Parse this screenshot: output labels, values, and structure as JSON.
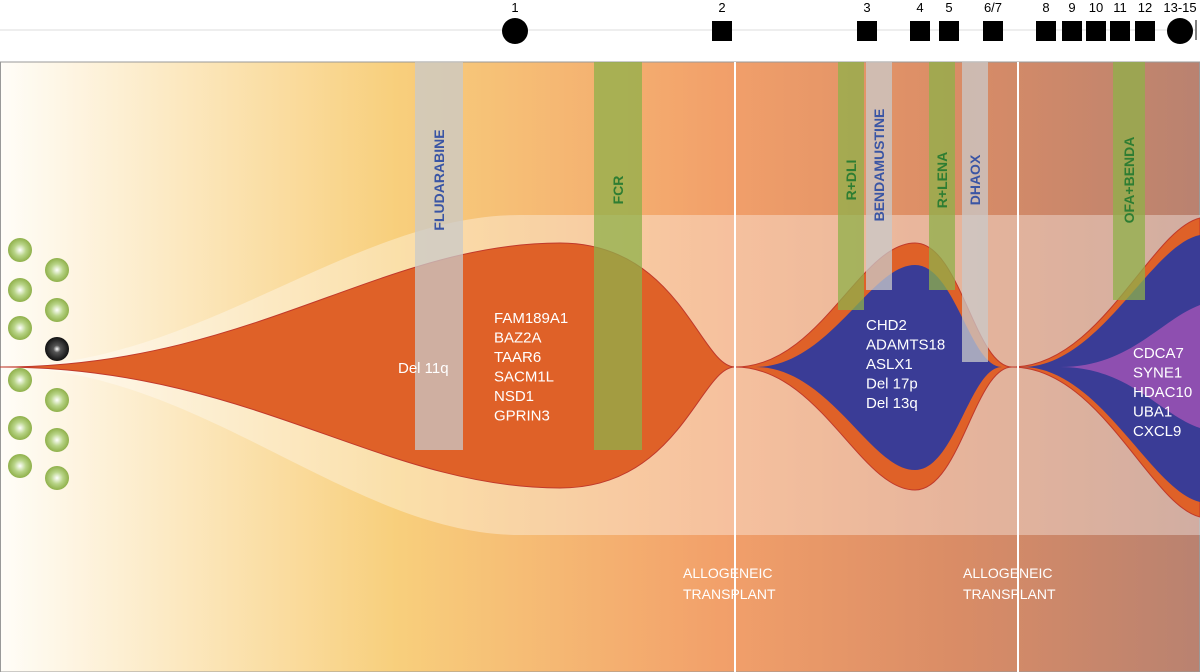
{
  "timeline": [
    {
      "label": "1",
      "shape": "circle"
    },
    {
      "label": "2",
      "shape": "square"
    },
    {
      "label": "3",
      "shape": "square"
    },
    {
      "label": "4",
      "shape": "square"
    },
    {
      "label": "5",
      "shape": "square"
    },
    {
      "label": "6/7",
      "shape": "square"
    },
    {
      "label": "8",
      "shape": "square"
    },
    {
      "label": "9",
      "shape": "square"
    },
    {
      "label": "10",
      "shape": "square"
    },
    {
      "label": "11",
      "shape": "square"
    },
    {
      "label": "12",
      "shape": "square"
    },
    {
      "label": "13-15",
      "shape": "circle"
    }
  ],
  "treatments": [
    {
      "label": "FLUDARABINE",
      "color": "#c9c9c9",
      "text_color": "#3a55a4"
    },
    {
      "label": "FCR",
      "color": "#8fb04a",
      "text_color": "#2e7d32"
    },
    {
      "label": "R+DLI",
      "color": "#8fb04a",
      "text_color": "#2e7d32"
    },
    {
      "label": "BENDAMUSTINE",
      "color": "#c9c9c9",
      "text_color": "#3a55a4"
    },
    {
      "label": "R+LENA",
      "color": "#8fb04a",
      "text_color": "#2e7d32"
    },
    {
      "label": "DHAOX",
      "color": "#c9c9c9",
      "text_color": "#3a55a4"
    },
    {
      "label": "OFA+BENDA",
      "color": "#8fb04a",
      "text_color": "#2e7d32"
    }
  ],
  "clone_labels": [
    {
      "items": [
        "Del 11q"
      ]
    },
    {
      "items": [
        "FAM189A1",
        "BAZ2A",
        "TAAR6",
        "SACM1L",
        "NSD1",
        "GPRIN3"
      ]
    },
    {
      "items": [
        "CHD2",
        "ADAMTS18",
        "ASLX1",
        "Del 17p",
        "Del 13q"
      ]
    },
    {
      "items": [
        "CDCA7",
        "SYNE1",
        "HDAC10",
        "UBA1",
        "CXCL9"
      ]
    }
  ],
  "transplants": [
    {
      "lines": [
        "ALLOGENEIC",
        "TRANSPLANT"
      ]
    },
    {
      "lines": [
        "ALLOGENEIC",
        "TRANSPLANT"
      ]
    }
  ]
}
